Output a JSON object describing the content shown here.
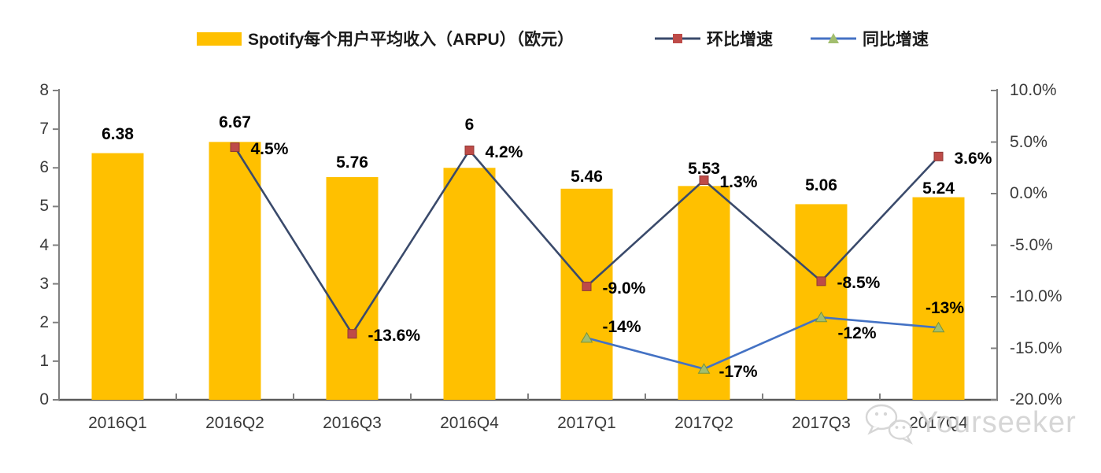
{
  "legend": {
    "bar_label": "Spotify每个用户平均收入（ARPU）（欧元）",
    "qoq_label": "环比增速",
    "yoy_label": "同比增速"
  },
  "watermark": {
    "text": "Yourseeker"
  },
  "colors": {
    "bar": "#FFC000",
    "qoq_line": "#3A4A6B",
    "qoq_marker": "#BE4B48",
    "qoq_marker_border": "#8E3836",
    "yoy_line": "#4472C4",
    "yoy_marker": "#A2BE6E",
    "yoy_marker_border": "#77933C",
    "axis": "#808080",
    "axis_bottom": "#595959",
    "tick_text": "#3a3a3a",
    "data_label": "#000000",
    "watermark": "#CFCFCF"
  },
  "chart_data": {
    "type": "bar+line combo",
    "title": "Spotify每个用户平均收入（ARPU）（欧元）",
    "categories": [
      "2016Q1",
      "2016Q2",
      "2016Q3",
      "2016Q4",
      "2017Q1",
      "2017Q2",
      "2017Q3",
      "2017Q4"
    ],
    "series": [
      {
        "name": "Spotify每个用户平均收入（ARPU）（欧元）",
        "type": "bar",
        "axis": "left",
        "values": [
          6.38,
          6.67,
          5.76,
          6,
          5.46,
          5.53,
          5.06,
          5.24
        ],
        "labels": [
          "6.38",
          "6.67",
          "5.76",
          "6",
          "5.46",
          "5.53",
          "5.06",
          "5.24"
        ]
      },
      {
        "name": "环比增速",
        "type": "line",
        "axis": "right",
        "marker": "square",
        "values": [
          null,
          4.5,
          -13.6,
          4.2,
          -9.0,
          1.3,
          -8.5,
          3.6
        ],
        "labels": [
          null,
          "4.5%",
          "-13.6%",
          "4.2%",
          "-9.0%",
          "1.3%",
          "-8.5%",
          "3.6%"
        ]
      },
      {
        "name": "同比增速",
        "type": "line",
        "axis": "right",
        "marker": "triangle",
        "values": [
          null,
          null,
          null,
          null,
          -14,
          -17,
          -12,
          -13
        ],
        "labels": [
          null,
          null,
          null,
          null,
          "-14%",
          "-17%",
          "-12%",
          "-13%"
        ]
      }
    ],
    "left_axis": {
      "min": 0,
      "max": 8,
      "tick_values": [
        8,
        7,
        6,
        5,
        4,
        3,
        2,
        1,
        0
      ],
      "tick_labels": [
        "8",
        "7",
        "6",
        "5",
        "4",
        "3",
        "2",
        "1",
        "0"
      ]
    },
    "right_axis": {
      "min": -20,
      "max": 10,
      "tick_values": [
        10,
        5,
        0,
        -5,
        -10,
        -15,
        -20
      ],
      "tick_labels": [
        "10.0%",
        "5.0%",
        "0.0%",
        "-5.0%",
        "-10.0%",
        "-15.0%",
        "-20.0%"
      ]
    },
    "grid": false,
    "legend_position": "top"
  }
}
